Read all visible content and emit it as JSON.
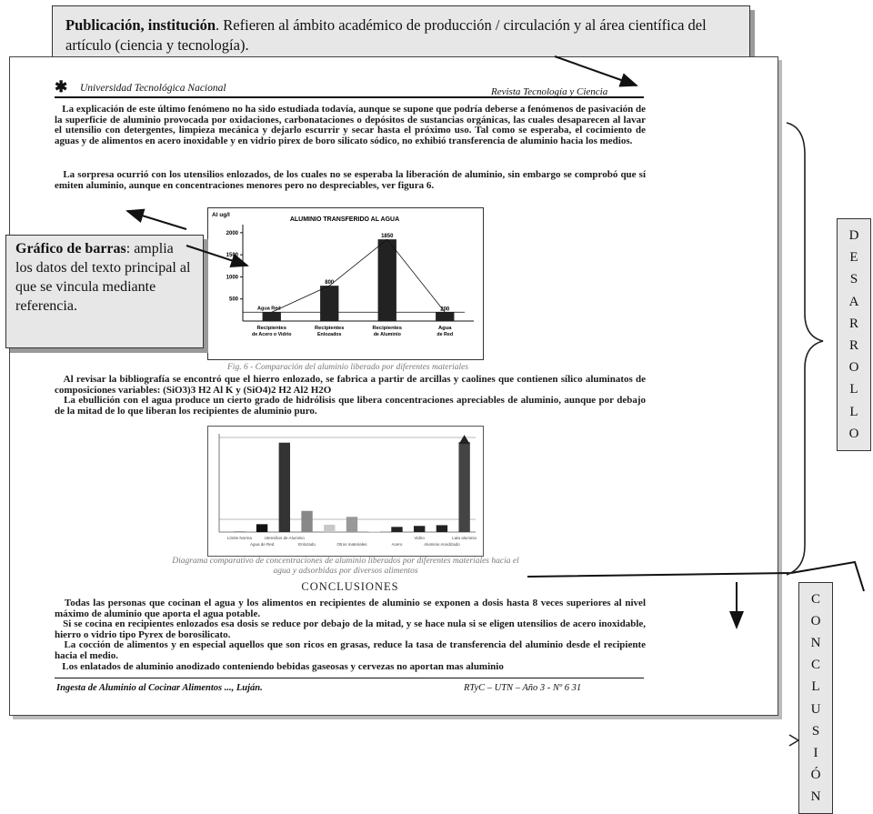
{
  "callout_top": {
    "bold": "Publicación, institución",
    "text": ". Refieren al ámbito académico de producción / circulación y al área científica del artículo (ciencia y tecnología)."
  },
  "header": {
    "left": "Universidad Tecnológica Nacional",
    "right": "Revista Tecnología y Ciencia"
  },
  "paragraphs": {
    "p1": "La explicación de este último fenómeno no ha sido estudiada todavía, aunque se supone que podría deberse a fenómenos de pasivación de la superficie de aluminio provocada por oxidaciones, carbonataciones o depósitos de sustancias orgánicas, las cuales desaparecen al lavar el utensilio con detergentes, limpieza mecánica y dejarlo escurrir y secar hasta el próximo uso. Tal como se esperaba, el cocimiento de aguas y de alimentos en acero inoxidable y en vidrio pirex de boro silicato sódico, no exhibió transferencia de aluminio hacia los medios.",
    "p2": "La sorpresa ocurrió con los utensilios enlozados, de los cuales no se esperaba la liberación de aluminio, sin embargo se comprobó que sí emiten aluminio, aunque en concentraciones menores pero no despreciables, ver figura 6.",
    "p3a": "Al revisar la bibliografía se encontró que el hierro enlozado, se fabrica a partir de arcillas y caolines que contienen sílico aluminatos de composiciones variables: (SiO3)3 H2 Al K y (SiO4)2 H2 Al2 H2O",
    "p3b": "La ebullición con el agua produce un cierto grado de hidrólisis que libera concentraciones apreciables de aluminio, aunque por debajo de la mitad de lo que liberan los recipientes de aluminio puro."
  },
  "figure1": {
    "caption": "Fig. 6 - Comparación del aluminio liberado por diferentes materiales"
  },
  "figure2": {
    "caption": "Diagrama comparativo de concentraciones de aluminio liberados por diferentes materiales hacia el agua y adsorbidas por diversos alimentos"
  },
  "chart_data": [
    {
      "type": "bar",
      "title": "ALUMINIO TRANSFERIDO AL AGUA",
      "ylabel": "Al ug/l",
      "categories": [
        "Recipientes de Acero o Vidrio",
        "Recipientes Enlozados",
        "Recipientes de Aluminio",
        "Agua de Red"
      ],
      "values": [
        200,
        800,
        1850,
        200
      ],
      "data_labels": [
        "",
        "800",
        "1850",
        "200"
      ],
      "annotation": "Agua Red",
      "yticks": [
        500,
        1000,
        1500,
        2000
      ],
      "ylim": [
        0,
        2100
      ],
      "series_color": "#222222"
    },
    {
      "type": "bar",
      "categories": [
        "Límite Norma",
        "Agua de Red",
        "Utensilios de Aluminio",
        "Enlozado",
        "",
        "Otros materiales",
        "",
        "Acero",
        "Vidrio",
        "Aluminio Anodizado",
        "Lata aluminio"
      ],
      "values": [
        10,
        160,
        1820,
        430,
        150,
        310,
        10,
        105,
        125,
        140,
        1830
      ],
      "bar_colors": [
        "#444444",
        "#111111",
        "#333333",
        "#888888",
        "#c8c8c8",
        "#999999",
        "#cccccc",
        "#222222",
        "#222222",
        "#222222",
        "#444444"
      ],
      "ylim": [
        0,
        2000
      ],
      "grid": false
    }
  ],
  "callout_left": {
    "bold": "Gráfico de barras",
    "text": ": amplia los datos del texto principal al que se vincula mediante referencia."
  },
  "conclusions": {
    "title": "CONCLUSIONES",
    "c1": "Todas las personas que cocinan el agua y los alimentos en recipientes de aluminio se exponen a dosis hasta 8 veces superiores al nivel máximo de aluminio que aporta el agua potable.",
    "c2": "Si se cocina en recipientes enlozados esa dosis se reduce por debajo de la mitad, y se hace nula si se eligen utensilios de acero inoxidable, hierro o vidrio tipo Pyrex de borosilicato.",
    "c3": "La cocción de alimentos y en especial aquellos que son ricos en grasas, reduce la tasa de transferencia del aluminio desde el recipiente hacia el medio.",
    "c4": "Los enlatados de aluminio anodizado conteniendo bebidas gaseosas y cervezas no aportan mas aluminio"
  },
  "footer": {
    "left": "Ingesta de Aluminio al Cocinar Alimentos ..., Luján.",
    "right": "RTyC – UTN – Año 3 - Nº 6 31"
  },
  "side_desarrollo": [
    "D",
    "E",
    "S",
    "A",
    "R",
    "R",
    "O",
    "L",
    "L",
    "O"
  ],
  "side_conclusion": [
    "C",
    "O",
    "N",
    "C",
    "L",
    "U",
    "S",
    "I",
    "Ó",
    "N"
  ]
}
